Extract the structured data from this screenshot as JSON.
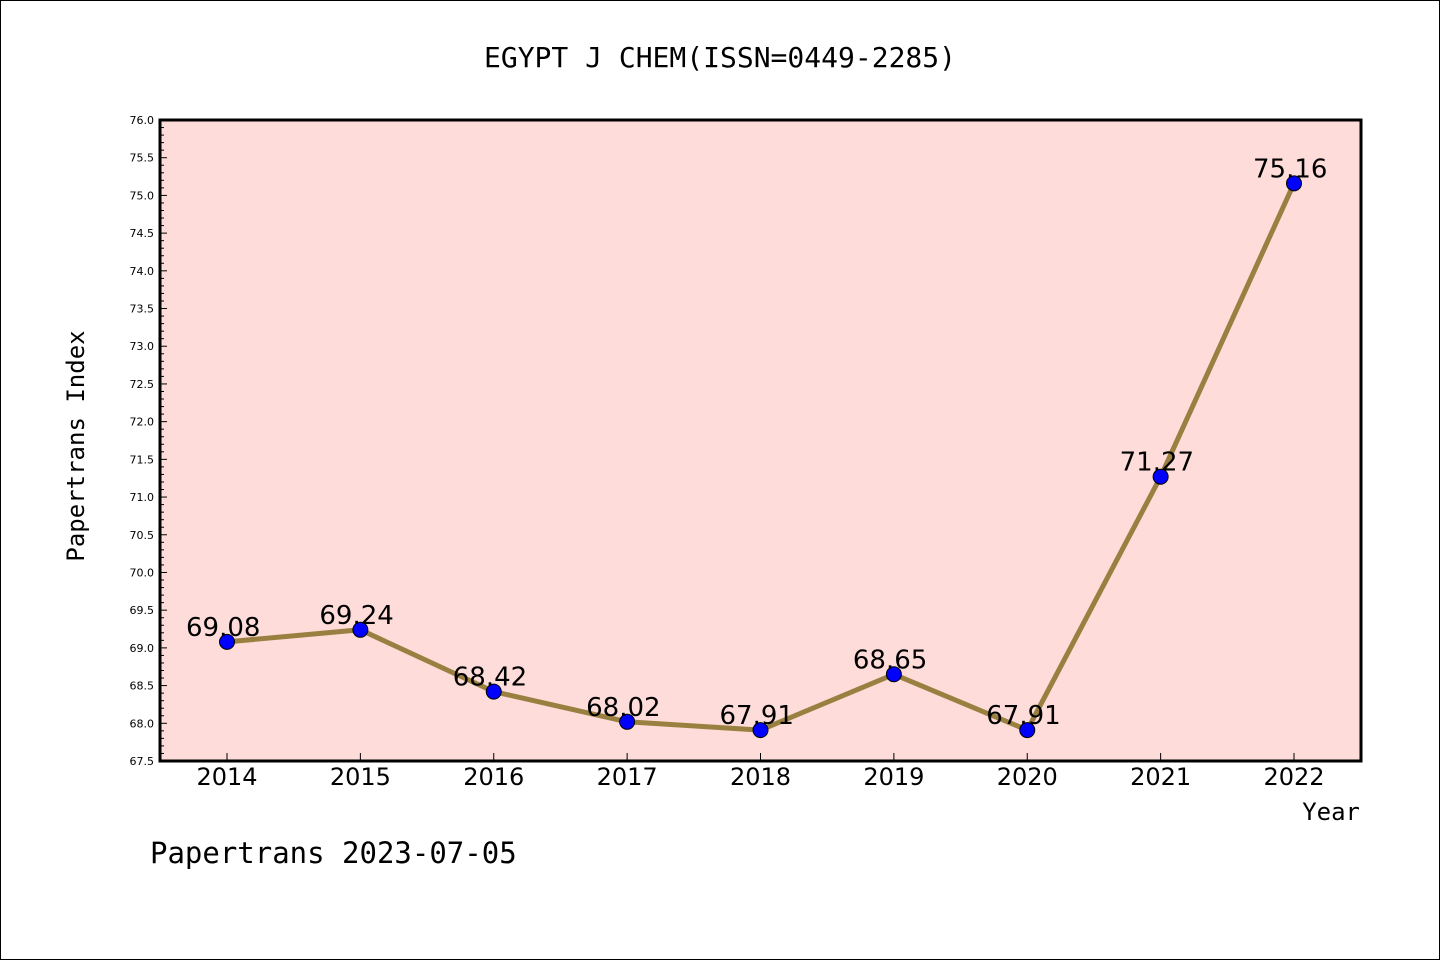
{
  "chart_data": {
    "type": "line",
    "title": "EGYPT J CHEM(ISSN=0449-2285)",
    "xlabel": "Year",
    "ylabel": "Papertrans Index",
    "categories": [
      "2014",
      "2015",
      "2016",
      "2017",
      "2018",
      "2019",
      "2020",
      "2021",
      "2022"
    ],
    "values": [
      69.08,
      69.24,
      68.42,
      68.02,
      67.91,
      68.65,
      67.91,
      71.27,
      75.16
    ],
    "data_labels": [
      "69.08",
      "69.24",
      "68.42",
      "68.02",
      "67.91",
      "68.65",
      "67.91",
      "71.27",
      "75.16"
    ],
    "ylim": [
      67.5,
      76.0
    ],
    "yticks": [
      "67.5",
      "68.0",
      "68.5",
      "69.0",
      "69.5",
      "70.0",
      "70.5",
      "71.0",
      "71.5",
      "72.0",
      "72.5",
      "73.0",
      "73.5",
      "74.0",
      "74.5",
      "75.0",
      "75.5",
      "76.0"
    ],
    "grid": false,
    "plot_background": "#fddcd9",
    "line_color": "#9a8040",
    "marker_color": "#0000ff"
  },
  "footer": "Papertrans 2023-07-05"
}
